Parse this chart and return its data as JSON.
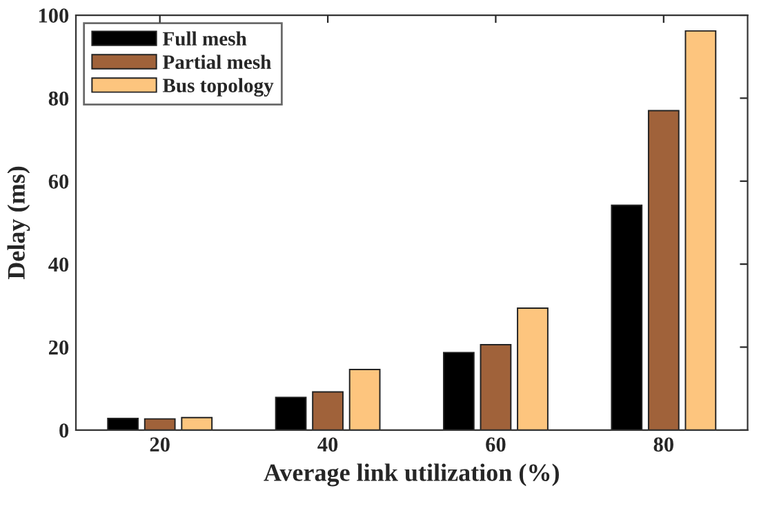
{
  "chart_data": {
    "type": "bar",
    "xlabel": "Average link utilization (%)",
    "ylabel": "Delay (ms)",
    "categories": [
      "20",
      "40",
      "60",
      "80"
    ],
    "series": [
      {
        "name": "Full mesh",
        "color": "#000000",
        "values": [
          2.8,
          7.9,
          18.7,
          54.2
        ]
      },
      {
        "name": "Partial mesh",
        "color": "#a0623a",
        "values": [
          2.7,
          9.2,
          20.6,
          77.0
        ]
      },
      {
        "name": "Bus topology",
        "color": "#fdc57e",
        "values": [
          3.0,
          14.6,
          29.4,
          96.2
        ]
      }
    ],
    "ylim": [
      0,
      100
    ],
    "yticks": [
      0,
      20,
      40,
      60,
      80,
      100
    ],
    "grid": false,
    "legend": "top left"
  }
}
